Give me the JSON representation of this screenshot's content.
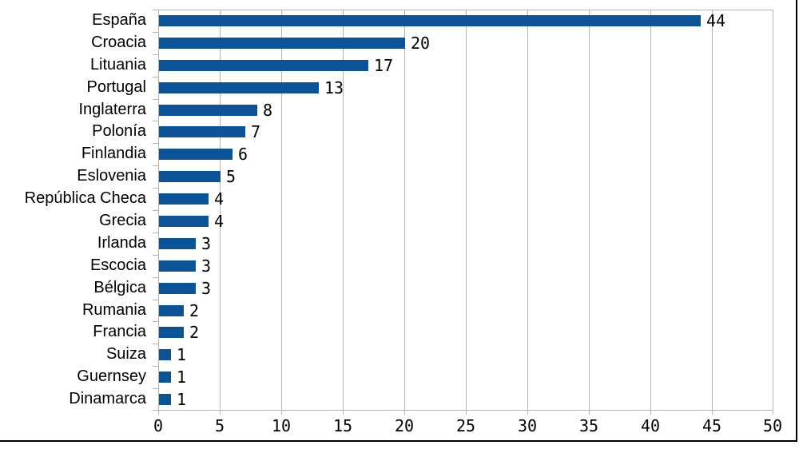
{
  "chart_data": {
    "type": "bar",
    "orientation": "horizontal",
    "title": "",
    "xlabel": "",
    "ylabel": "",
    "categories": [
      "España",
      "Croacia",
      "Lituania",
      "Portugal",
      "Inglaterra",
      "Polonía",
      "Finlandia",
      "Eslovenia",
      "República Checa",
      "Grecia",
      "Irlanda",
      "Escocia",
      "Bélgica",
      "Rumania",
      "Francia",
      "Suiza",
      "Guernsey",
      "Dinamarca"
    ],
    "values": [
      44,
      20,
      17,
      13,
      8,
      7,
      6,
      5,
      4,
      4,
      3,
      3,
      3,
      2,
      2,
      1,
      1,
      1
    ],
    "data_labels_shown": true,
    "xlim": [
      0,
      50
    ],
    "x_ticks": [
      0,
      5,
      10,
      15,
      20,
      25,
      30,
      35,
      40,
      45,
      50
    ],
    "grid": "vertical-only",
    "legend": "none",
    "colors": {
      "bar": "#0b5394",
      "grid": "#b4b4b4",
      "text": "#000000",
      "screen_edge": "#000000",
      "background": "#ffffff"
    }
  }
}
